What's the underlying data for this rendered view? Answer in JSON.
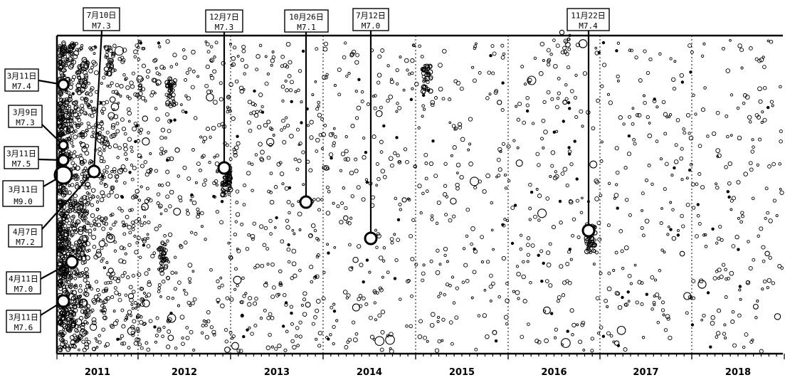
{
  "chart_data": {
    "type": "scatter",
    "title": "",
    "xlabel": "",
    "ylabel": "",
    "xlim": [
      "2011-01-01",
      "2018-12-31"
    ],
    "x_ticks": [
      "2011",
      "2012",
      "2013",
      "2014",
      "2015",
      "2016",
      "2017",
      "2018"
    ],
    "grid": "vertical dotted year boundaries",
    "background_events": "dense scatter of small open circles (aftershock seismicity)",
    "labeled_events": [
      {
        "date_label": "3月11日",
        "magnitude_label": "M9.0",
        "highlight": "#2e7d32"
      },
      {
        "date_label": "3月11日",
        "magnitude_label": "M7.4"
      },
      {
        "date_label": "3月9日",
        "magnitude_label": "M7.3"
      },
      {
        "date_label": "3月11日",
        "magnitude_label": "M7.5"
      },
      {
        "date_label": "4月7日",
        "magnitude_label": "M7.2"
      },
      {
        "date_label": "4月11日",
        "magnitude_label": "M7.0"
      },
      {
        "date_label": "3月11日",
        "magnitude_label": "M7.6"
      },
      {
        "date_label": "7月10日",
        "magnitude_label": "M7.3"
      },
      {
        "date_label": "12月7日",
        "magnitude_label": "M7.3"
      },
      {
        "date_label": "10月26日",
        "magnitude_label": "M7.1"
      },
      {
        "date_label": "7月12日",
        "magnitude_label": "M7.0"
      },
      {
        "date_label": "11月22日",
        "magnitude_label": "M7.4"
      }
    ]
  }
}
